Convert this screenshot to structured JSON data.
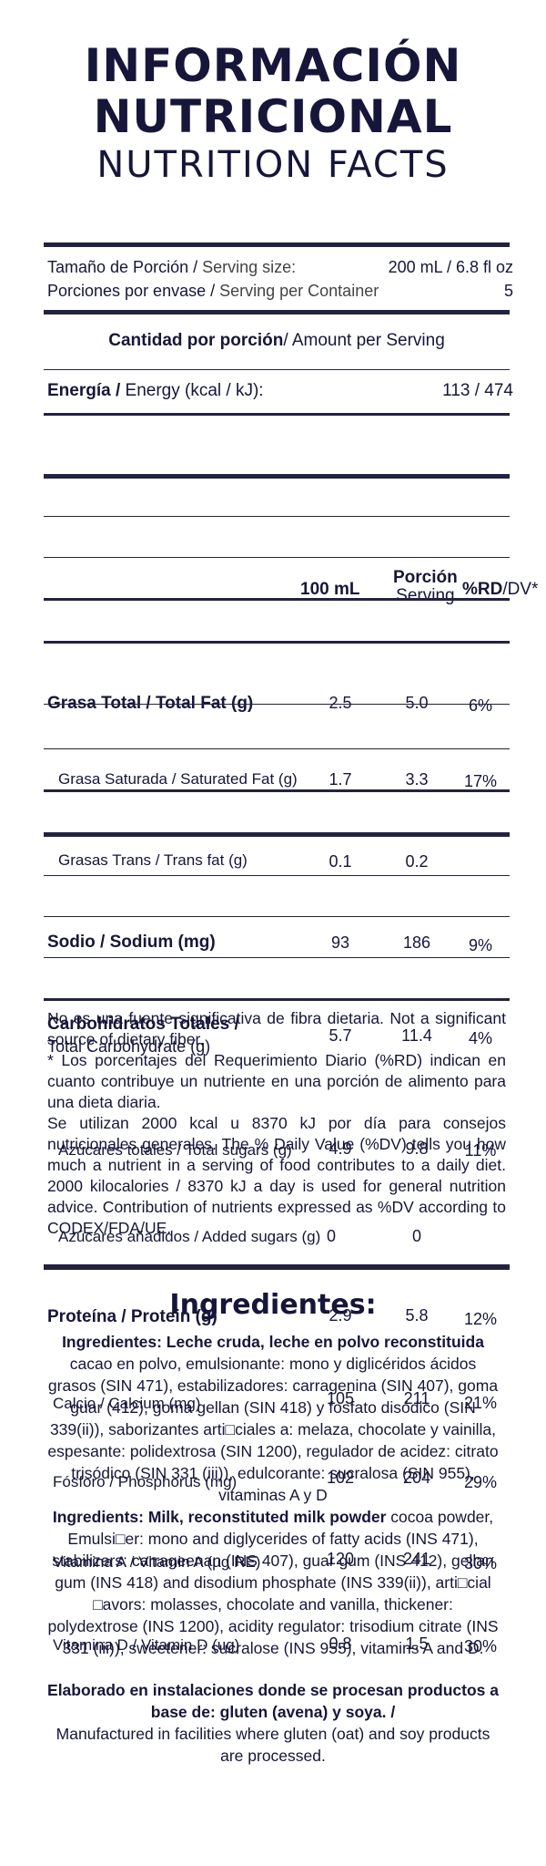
{
  "title": {
    "line1": "INFORMACIÓN",
    "line2": "NUTRICIONAL",
    "line3": "NUTRITION FACTS"
  },
  "serving": {
    "size_es": "Tamaño de Porción / ",
    "size_en": "Serving size:",
    "size_value": "200 mL / 6.8 fl oz",
    "per_container_es": "Porciones por envase / ",
    "per_container_en": "Serving per Container",
    "per_container_value": "5"
  },
  "amount_per_serving": {
    "es": "Cantidad por porción",
    "en": " / Amount per Serving"
  },
  "energy": {
    "label_es": "Energía / ",
    "label_en": "Energy (kcal / kJ):",
    "value": "113 / 474"
  },
  "columns": {
    "col1": "100 mL",
    "col2_line1": "Porción",
    "col2_line2": "Serving",
    "col3_bold": "%RD",
    "col3_light": "/DV*"
  },
  "nutrients": [
    {
      "label": "Grasa Total / Total Fat (g)",
      "v100": "2.5",
      "vserv": "5.0",
      "dv": "6%",
      "bold": true
    },
    {
      "label": "Grasa Saturada / Saturated Fat (g)",
      "v100": "1.7",
      "vserv": "3.3",
      "dv": "17%",
      "bold": false
    },
    {
      "label": "Grasas Trans / Trans fat (g)",
      "v100": "0.1",
      "vserv": "0.2",
      "dv": "",
      "bold": false
    },
    {
      "label": "Sodio / Sodium (mg)",
      "v100": "93",
      "vserv": "186",
      "dv": "9%",
      "bold": true
    },
    {
      "label_bold": "Carbohidratos Totales /",
      "label_light": "Total Carbohydrate (g)",
      "v100": "5.7",
      "vserv": "11.4",
      "dv": "4%"
    },
    {
      "label": "Azúcares totales / Total sugars (g)",
      "v100": "4.9",
      "vserv": "9.8",
      "dv": "11%",
      "bold": false
    },
    {
      "label": "Azúcares añadidos / Added sugars (g)",
      "v100": "0",
      "vserv": "0",
      "dv": "",
      "bold": false
    },
    {
      "label": "Proteína / Protein (g)",
      "v100": "2.9",
      "vserv": "5.8",
      "dv": "12%",
      "bold": true
    },
    {
      "label": "Calcio / Calcium (mg)",
      "v100": "105",
      "vserv": "211",
      "dv": "21%",
      "bold": false
    },
    {
      "label": "Fósforo / Phosphorus (mg)",
      "v100": "102",
      "vserv": "204",
      "dv": "29%",
      "bold": false
    },
    {
      "label": "Vitamina A / Vitamin A (µg RE)",
      "v100": "120",
      "vserv": "241",
      "dv": "30%",
      "bold": false
    },
    {
      "label": "Vitamina D / Vitamin D (ug)",
      "v100": "0.8",
      "vserv": "1.5",
      "dv": "30%",
      "bold": false
    }
  ],
  "notes": {
    "fiber": "No es una fuente significativa de fibra dietaria. Not a significant source of dietary fiber.",
    "rd": "* Los porcentajes del Requerimiento Diario (%RD) indican en cuanto contribuye un nutriente en una porción de alimento para una dieta diaria.",
    "kcal": "Se utilizan 2000 kcal u 8370 kJ por día para consejos nutricionales generales. The % Daily Value (%DV) tells you how much a nutrient in a serving of food contributes to a daily diet. 2000 kilocalories / 8370 kJ a day is used for general nutrition advice. Contribution of nutrients expressed as %DV according to CODEX/FDA/UE."
  },
  "ingredients": {
    "title": "Ingredientes:",
    "es_bold": "Ingredientes: Leche cruda, leche en polvo reconstituida",
    "es_text": "cacao en polvo, emulsionante: mono y diglicéridos ácidos grasos (SIN 471), estabilizadores: carragenina (SIN 407), goma guar (412), goma gellan (SIN 418) y fosfato disódico (SIN 339(ii)), saborizantes arti□ciales a: melaza, chocolate y vainilla, espesante: polidextrosa (SIN 1200), regulador de acidez: citrato trisódico (SIN 331 (iii)), edulcorante: sucralosa (SIN 955), vitaminas A y D",
    "en_bold": "Ingredients: Milk, reconstituted milk powder",
    "en_text1": " cocoa powder,",
    "en_text2": "Emulsi□er: mono and diglycerides of fatty acids (INS 471), stabilizers: carrageenan (INS 407), guar gum (INS 412), gellan gum (INS 418) and disodium phosphate (INS 339(ii)), arti□cial □avors: molasses, chocolate and vanilla, thickener: polydextrose (INS 1200), acidity regulator: trisodium citrate (INS 331 (iii)), sweetener: sucralose (INS 955), vitamins A and D.",
    "facility_bold": "Elaborado en instalaciones donde se procesan productos a base de: gluten (avena) y soya. /",
    "facility_text": "Manufactured in facilities where gluten (oat) and soy products are processed."
  }
}
